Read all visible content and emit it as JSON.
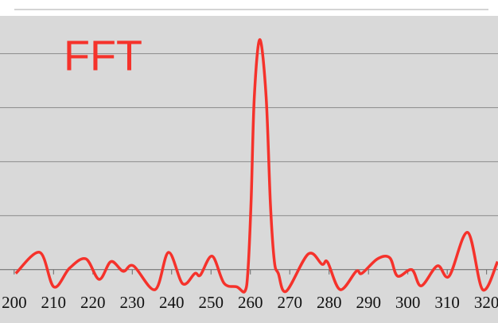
{
  "chart_data": {
    "type": "line",
    "title": "FFT",
    "x": [
      200.4,
      206.5,
      210.1,
      214.1,
      218.2,
      221.6,
      224.6,
      227.7,
      230.3,
      235.8,
      239.2,
      242.8,
      245.9,
      247.3,
      250.3,
      253.3,
      256.6,
      258.6,
      259.4,
      260.2,
      261.0,
      262.4,
      264.0,
      265.1,
      266.1,
      267.1,
      269.1,
      274.7,
      278.2,
      279.6,
      282.8,
      286.9,
      288.3,
      292.3,
      295.4,
      297.4,
      301.0,
      303.4,
      307.5,
      310.5,
      315.2,
      319.0,
      322.8
    ],
    "series": [
      {
        "name": "FFT",
        "color": "#f5322b",
        "values": [
          -0.07,
          0.32,
          -0.32,
          0.03,
          0.2,
          -0.18,
          0.15,
          -0.03,
          0.07,
          -0.37,
          0.32,
          -0.26,
          -0.07,
          -0.1,
          0.25,
          -0.25,
          -0.32,
          -0.4,
          0,
          1.3,
          3.2,
          4.26,
          3.2,
          1.2,
          0.15,
          -0.07,
          -0.4,
          0.29,
          0.1,
          0.14,
          -0.37,
          -0.03,
          -0.07,
          0.2,
          0.22,
          -0.12,
          0,
          -0.3,
          0.07,
          -0.12,
          0.69,
          -0.37,
          0.15
        ]
      }
    ],
    "xlim": [
      196.4,
      322.9
    ],
    "xticks": [
      200,
      210,
      220,
      230,
      240,
      250,
      260,
      270,
      280,
      290,
      300,
      310,
      320
    ],
    "ylim": [
      -0.4,
      4.7
    ],
    "yticks": [
      0,
      1,
      2,
      3,
      4
    ],
    "grid": true
  }
}
